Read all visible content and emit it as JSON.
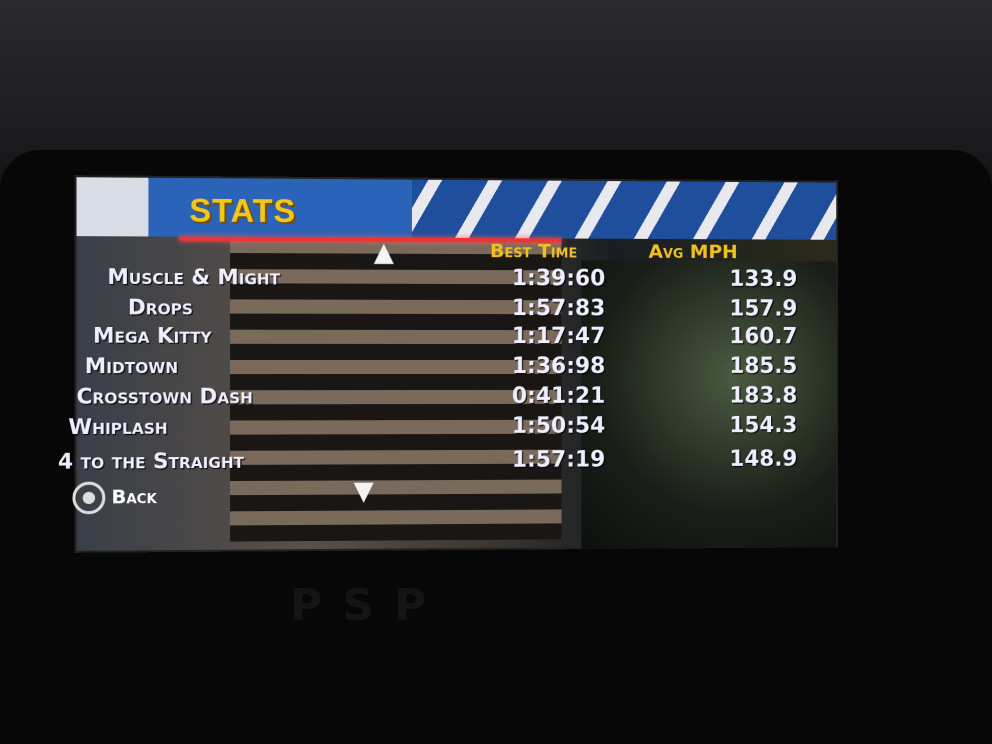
{
  "screen": {
    "title": "STATS",
    "columns": {
      "best_time": "Best Time",
      "avg_mph": "Avg MPH"
    },
    "rows": [
      {
        "track": "Muscle & Might",
        "best_time": "1:39:60",
        "avg_mph": "133.9"
      },
      {
        "track": "Drops",
        "best_time": "1:57:83",
        "avg_mph": "157.9"
      },
      {
        "track": "Mega Kitty",
        "best_time": "1:17:47",
        "avg_mph": "160.7"
      },
      {
        "track": "Midtown",
        "best_time": "1:36:98",
        "avg_mph": "185.5"
      },
      {
        "track": "Crosstown Dash",
        "best_time": "0:41:21",
        "avg_mph": "183.8"
      },
      {
        "track": "Whiplash",
        "best_time": "1:50:54",
        "avg_mph": "154.3"
      },
      {
        "track": "4 to the Straight",
        "best_time": "1:57:19",
        "avg_mph": "148.9"
      }
    ],
    "back_label": "Back",
    "title_color": "#f1c81a",
    "header_color": "#f0c020"
  }
}
